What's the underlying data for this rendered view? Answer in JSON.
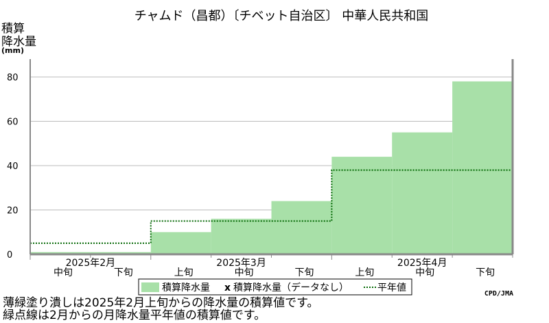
{
  "chart_data": {
    "type": "area",
    "title": "チャムド（昌都）〔チベット自治区〕 中華人民共和国",
    "ylabel_lines": [
      "積算",
      "降水量"
    ],
    "yunit": "(mm)",
    "ylim": [
      0,
      80
    ],
    "yticks": [
      0,
      20,
      40,
      60,
      80
    ],
    "x": [
      "中旬",
      "下旬",
      "上旬",
      "中旬",
      "下旬",
      "上旬",
      "中旬",
      "下旬"
    ],
    "month_labels": [
      {
        "label": "2025年2月",
        "start": 0,
        "end": 2
      },
      {
        "label": "2025年3月",
        "start": 2,
        "end": 5
      },
      {
        "label": "2025年4月",
        "start": 5,
        "end": 8
      }
    ],
    "series": [
      {
        "name": "積算降水量",
        "values": [
          1,
          1,
          10,
          16,
          24,
          44,
          55,
          78
        ],
        "color": "#a8e0a8"
      },
      {
        "name": "平年値",
        "values": [
          5,
          5,
          15,
          15,
          15,
          38,
          38,
          38
        ],
        "color": "#006600",
        "style": "dotted"
      }
    ],
    "legend": {
      "items": [
        "積算降水量",
        "x",
        "積算降水量（データなし）",
        "平年値"
      ],
      "placement": "bottom"
    },
    "grid": true
  },
  "credit": "CPD/JMA",
  "notes": [
    "薄緑塗り潰しは2025年2月上旬からの降水量の積算値です。",
    "緑点線は2月からの月降水量平年値の積算値です。"
  ],
  "colors": {
    "grid": "#bbbbbb",
    "frame": "#888888",
    "fill": "#a8e0a8",
    "normal_line": "#006600"
  }
}
